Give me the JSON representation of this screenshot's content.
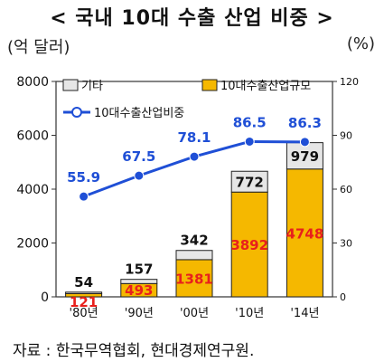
{
  "title": "< 국내 10대 수출 산업 비중 >",
  "left_unit": "(억 달러)",
  "right_unit": "(%)",
  "source": "자료 : 한국무역협회, 현대경제연구원.",
  "colors": {
    "other": "#e6e6e6",
    "top10": "#f5b800",
    "line": "#1f4fd6",
    "top10_label": "#e8201c",
    "other_label": "#111111"
  },
  "chart_data": {
    "type": "bar",
    "categories": [
      "'80년",
      "'90년",
      "'00년",
      "'10년",
      "'14년"
    ],
    "series": [
      {
        "name": "10대수출산업규모",
        "values": [
          121,
          493,
          1381,
          3892,
          4748
        ]
      },
      {
        "name": "기타",
        "values": [
          54,
          157,
          342,
          772,
          979
        ]
      },
      {
        "name": "10대수출산업비중",
        "values": [
          55.9,
          67.5,
          78.1,
          86.5,
          86.3
        ],
        "axis": "right",
        "type": "line"
      }
    ],
    "y_left_range": [
      0,
      8000
    ],
    "y_left_ticks": [
      "0",
      "2000",
      "4000",
      "6000",
      "8000"
    ],
    "y_right_range": [
      0,
      120
    ],
    "y_right_ticks": [
      "0",
      "30",
      "60",
      "90",
      "120"
    ],
    "stacked": true,
    "legend": [
      "기타",
      "10대수출산업규모",
      "10대수출산업비중"
    ],
    "legend_placement": "top",
    "grid": false
  }
}
